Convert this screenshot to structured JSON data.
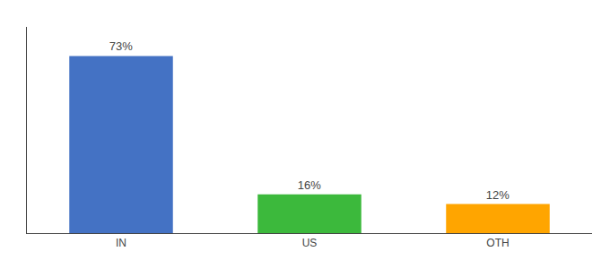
{
  "chart_data": {
    "type": "bar",
    "categories": [
      "IN",
      "US",
      "OTH"
    ],
    "values": [
      73,
      16,
      12
    ],
    "value_labels": [
      "73%",
      "16%",
      "12%"
    ],
    "colors": [
      "#4472C4",
      "#3CB93C",
      "#FFA500"
    ],
    "ylim": [
      0,
      85
    ],
    "data_labels": true,
    "tick_labels": "x",
    "grid": false
  }
}
